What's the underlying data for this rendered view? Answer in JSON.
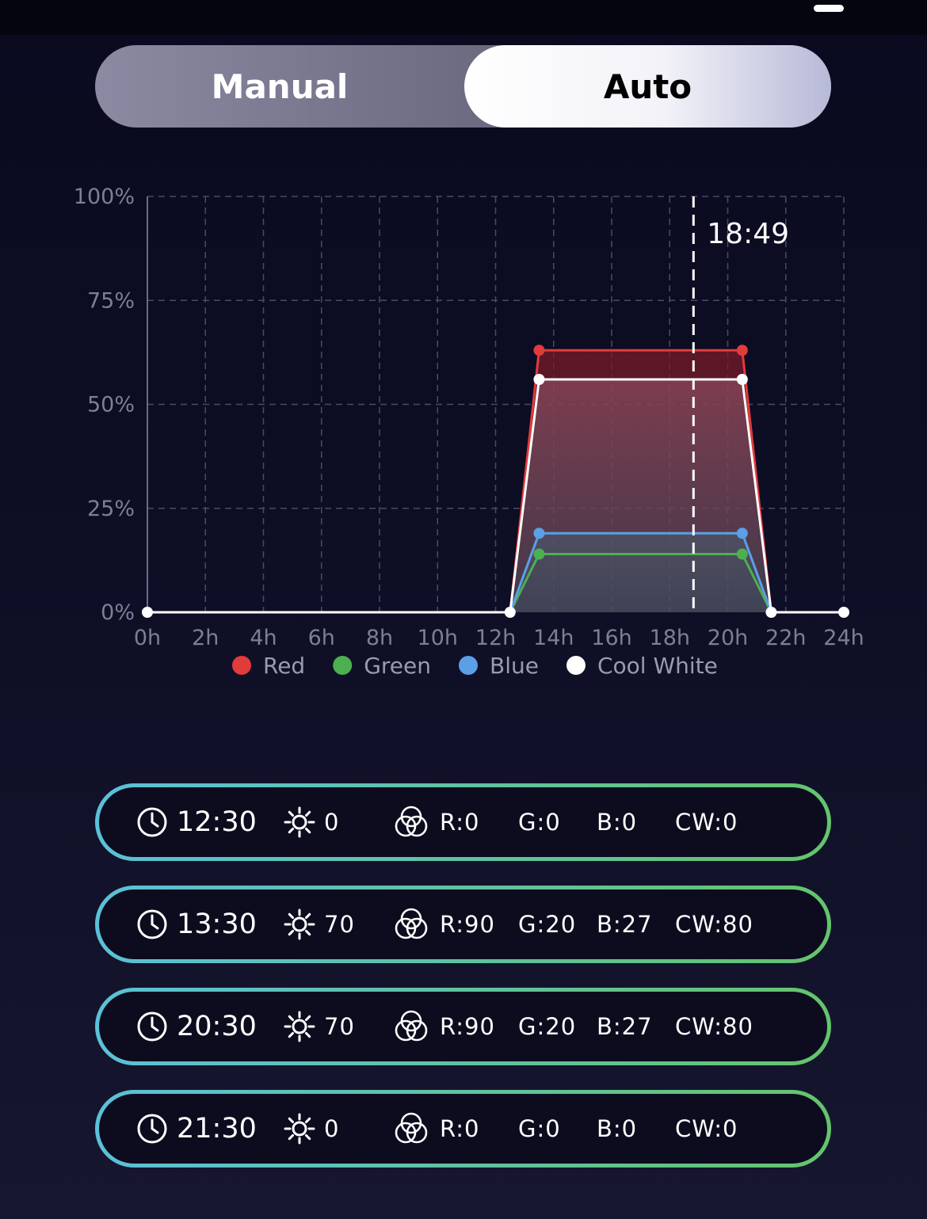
{
  "mode_switch": {
    "manual_label": "Manual",
    "auto_label": "Auto",
    "selected": "Auto"
  },
  "chart_data": {
    "type": "line",
    "x": [
      0,
      12.5,
      13.5,
      20.5,
      21.5,
      24
    ],
    "xticks": [
      "0h",
      "2h",
      "4h",
      "6h",
      "8h",
      "10h",
      "12h",
      "14h",
      "16h",
      "18h",
      "20h",
      "22h",
      "24h"
    ],
    "yticks": [
      "0%",
      "25%",
      "50%",
      "75%",
      "100%"
    ],
    "xlim": [
      0,
      24
    ],
    "ylim": [
      0,
      100
    ],
    "series": [
      {
        "name": "Red",
        "color": "#e23b3b",
        "values": [
          0,
          0,
          63,
          63,
          0,
          0
        ]
      },
      {
        "name": "Green",
        "color": "#4caf50",
        "values": [
          0,
          0,
          14,
          14,
          0,
          0
        ]
      },
      {
        "name": "Blue",
        "color": "#5b9fe6",
        "values": [
          0,
          0,
          19,
          19,
          0,
          0
        ]
      },
      {
        "name": "Cool White",
        "color": "#ffffff",
        "values": [
          0,
          0,
          56,
          56,
          0,
          0
        ]
      }
    ],
    "current_time": {
      "label": "18:49",
      "hours": 18.82
    },
    "grid": true,
    "legend_position": "bottom"
  },
  "schedule": [
    {
      "time": "12:30",
      "brightness": "0",
      "r": "R:0",
      "g": "G:0",
      "b": "B:0",
      "cw": "CW:0"
    },
    {
      "time": "13:30",
      "brightness": "70",
      "r": "R:90",
      "g": "G:20",
      "b": "B:27",
      "cw": "CW:80"
    },
    {
      "time": "20:30",
      "brightness": "70",
      "r": "R:90",
      "g": "G:20",
      "b": "B:27",
      "cw": "CW:80"
    },
    {
      "time": "21:30",
      "brightness": "0",
      "r": "R:0",
      "g": "G:0",
      "b": "B:0",
      "cw": "CW:0"
    }
  ],
  "icons": {
    "time": "clock-icon",
    "brightness": "sun-icon",
    "channels": "color-mix-icon"
  }
}
